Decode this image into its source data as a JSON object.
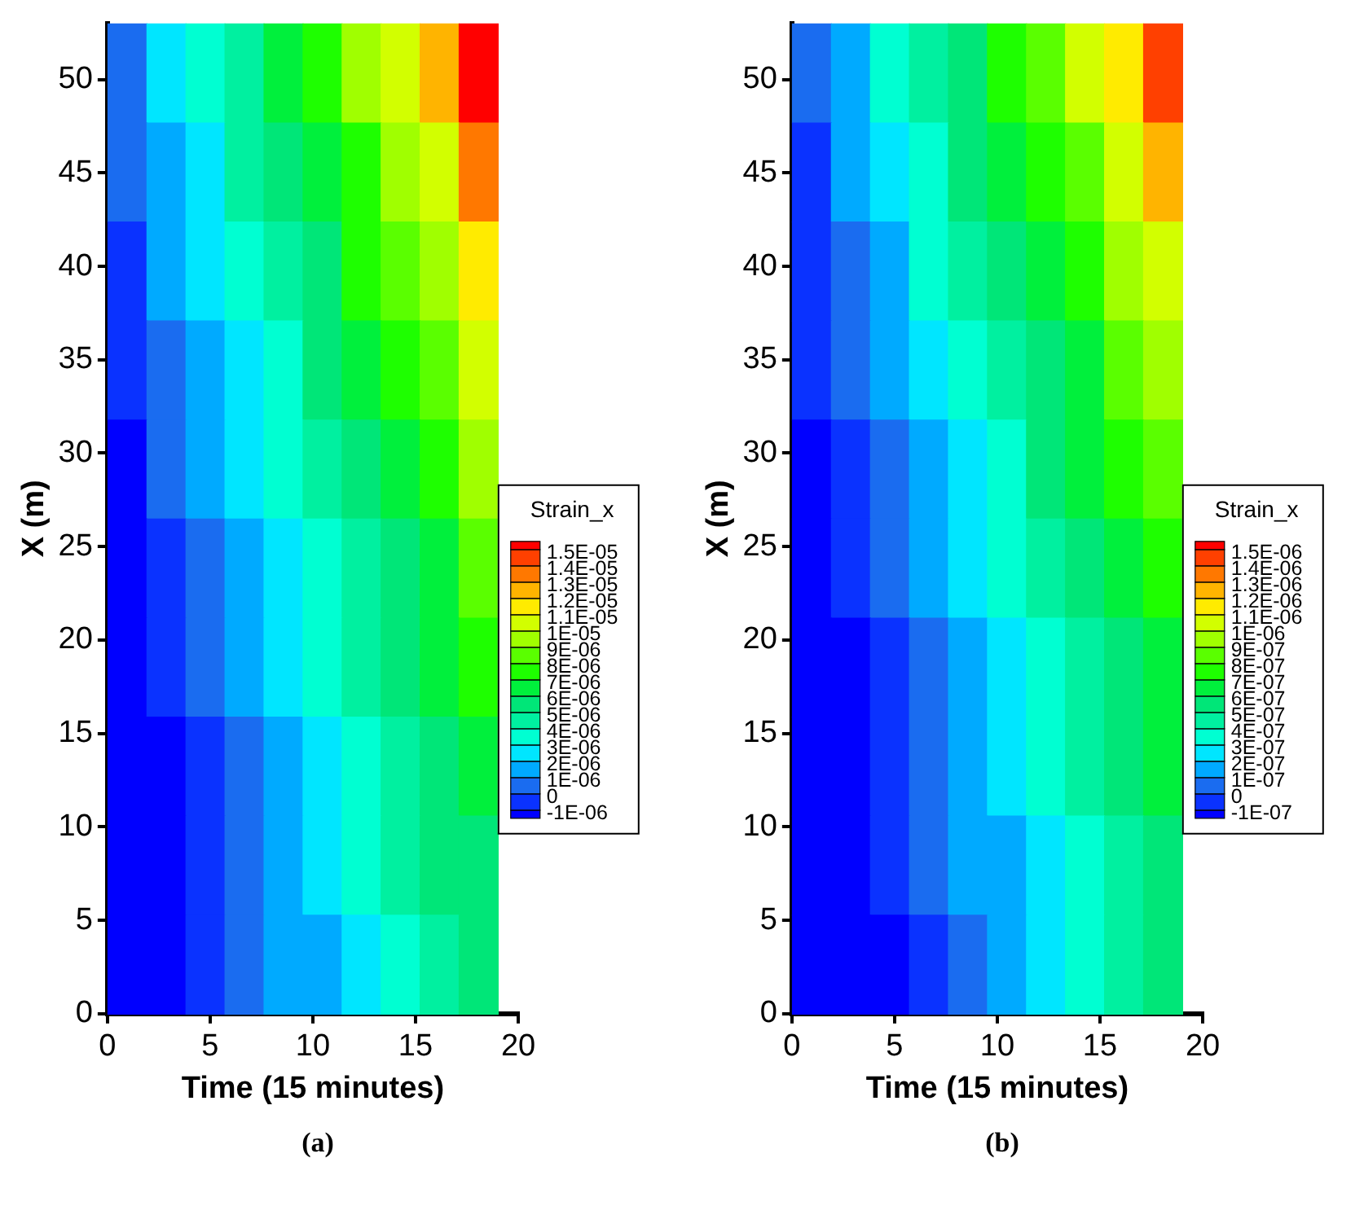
{
  "chart_data": [
    {
      "type": "heatmap",
      "xlabel": "Time (15 minutes)",
      "ylabel": "X (m)",
      "clabel": "Strain_x",
      "annotations": [
        "(a)"
      ],
      "x": [
        0.95,
        2.85,
        4.75,
        6.65,
        8.55,
        10.45,
        12.35,
        14.25,
        16.15,
        18.05
      ],
      "xlim": [
        0,
        20
      ],
      "xticks": [
        0,
        5,
        10,
        15,
        20
      ],
      "ylim": [
        0,
        53
      ],
      "yticks": [
        0,
        5,
        10,
        15,
        20,
        25,
        30,
        35,
        40,
        45,
        50
      ],
      "cells": [
        [
          5e-07,
          2.5e-06,
          3.5e-06,
          4.5e-06,
          6.5e-06,
          7.5e-06,
          9.5e-06,
          1.05e-05,
          1.25e-05,
          1.525e-05
        ],
        [
          5e-07,
          1.5e-06,
          2.5e-06,
          4.5e-06,
          5.5e-06,
          6.5e-06,
          7.5e-06,
          9.5e-06,
          1.05e-05,
          1.35e-05
        ],
        [
          -5e-07,
          1.5e-06,
          2.5e-06,
          3.5e-06,
          4.5e-06,
          5.5e-06,
          7.5e-06,
          8.5e-06,
          9.5e-06,
          1.15e-05
        ],
        [
          -5e-07,
          5e-07,
          1.5e-06,
          2.5e-06,
          3.5e-06,
          5.5e-06,
          6.5e-06,
          7.5e-06,
          8.5e-06,
          1.05e-05
        ],
        [
          -1.25e-06,
          5e-07,
          1.5e-06,
          2.5e-06,
          3.5e-06,
          4.5e-06,
          5.5e-06,
          6.5e-06,
          7.5e-06,
          9.5e-06
        ],
        [
          -1.25e-06,
          -5e-07,
          5e-07,
          1.5e-06,
          2.5e-06,
          3.5e-06,
          4.5e-06,
          5.5e-06,
          6.5e-06,
          8.5e-06
        ],
        [
          -1.25e-06,
          -5e-07,
          5e-07,
          1.5e-06,
          2.5e-06,
          3.5e-06,
          4.5e-06,
          5.5e-06,
          6.5e-06,
          7.5e-06
        ],
        [
          -1.25e-06,
          -1.25e-06,
          -5e-07,
          5e-07,
          1.5e-06,
          2.5e-06,
          3.5e-06,
          4.5e-06,
          5.5e-06,
          6.5e-06
        ],
        [
          -1.25e-06,
          -1.25e-06,
          -5e-07,
          5e-07,
          1.5e-06,
          2.5e-06,
          3.5e-06,
          4.5e-06,
          5.5e-06,
          5.5e-06
        ],
        [
          -1.25e-06,
          -1.25e-06,
          -5e-07,
          5e-07,
          1.5e-06,
          1.5e-06,
          2.5e-06,
          3.5e-06,
          4.5e-06,
          5.5e-06
        ]
      ],
      "clim": [
        -1.5e-06,
        1.55e-05
      ],
      "cticks": [
        {
          "value": -1e-06,
          "label": "-1E-06"
        },
        {
          "value": 0,
          "label": "0"
        },
        {
          "value": 1e-06,
          "label": "1E-06"
        },
        {
          "value": 2e-06,
          "label": "2E-06"
        },
        {
          "value": 3e-06,
          "label": "3E-06"
        },
        {
          "value": 4e-06,
          "label": "4E-06"
        },
        {
          "value": 5e-06,
          "label": "5E-06"
        },
        {
          "value": 6e-06,
          "label": "6E-06"
        },
        {
          "value": 7e-06,
          "label": "7E-06"
        },
        {
          "value": 8e-06,
          "label": "8E-06"
        },
        {
          "value": 9e-06,
          "label": "9E-06"
        },
        {
          "value": 1e-05,
          "label": "1E-05"
        },
        {
          "value": 1.1e-05,
          "label": "1.1E-05"
        },
        {
          "value": 1.2e-05,
          "label": "1.2E-05"
        },
        {
          "value": 1.3e-05,
          "label": "1.3E-05"
        },
        {
          "value": 1.4e-05,
          "label": "1.4E-05"
        },
        {
          "value": 1.5e-05,
          "label": "1.5E-05"
        }
      ],
      "colors": [
        "#0000ff",
        "#0a32ff",
        "#1a6cf0",
        "#00aaff",
        "#00e6ff",
        "#00ffd2",
        "#00f0a0",
        "#00e678",
        "#00f03c",
        "#1eff00",
        "#5aff00",
        "#a0ff00",
        "#d2ff00",
        "#ffeb00",
        "#ffb400",
        "#ff7800",
        "#ff4000",
        "#ff0000"
      ]
    },
    {
      "type": "heatmap",
      "xlabel": "Time (15 minutes)",
      "ylabel": "X (m)",
      "clabel": "Strain_x",
      "annotations": [
        "(b)"
      ],
      "x": [
        0.95,
        2.85,
        4.75,
        6.65,
        8.55,
        10.45,
        12.35,
        14.25,
        16.15,
        18.05
      ],
      "xlim": [
        0,
        20
      ],
      "xticks": [
        0,
        5,
        10,
        15,
        20
      ],
      "ylim": [
        0,
        53
      ],
      "yticks": [
        0,
        5,
        10,
        15,
        20,
        25,
        30,
        35,
        40,
        45,
        50
      ],
      "cells": [
        [
          5e-08,
          1.5e-07,
          3.5e-07,
          4.5e-07,
          5.5e-07,
          7.5e-07,
          8.5e-07,
          1.05e-06,
          1.15e-06,
          1.45e-06
        ],
        [
          -5e-08,
          1.5e-07,
          2.5e-07,
          3.5e-07,
          5.5e-07,
          6.5e-07,
          7.5e-07,
          8.5e-07,
          1.05e-06,
          1.25e-06
        ],
        [
          -5e-08,
          5e-08,
          1.5e-07,
          3.5e-07,
          4.5e-07,
          5.5e-07,
          6.5e-07,
          7.5e-07,
          9.5e-07,
          1.05e-06
        ],
        [
          -5e-08,
          5e-08,
          1.5e-07,
          2.5e-07,
          3.5e-07,
          4.5e-07,
          5.5e-07,
          6.5e-07,
          8.5e-07,
          9.5e-07
        ],
        [
          -1.25e-07,
          -5e-08,
          5e-08,
          1.5e-07,
          2.5e-07,
          3.5e-07,
          5.5e-07,
          6.5e-07,
          7.5e-07,
          8.5e-07
        ],
        [
          -1.25e-07,
          -5e-08,
          5e-08,
          1.5e-07,
          2.5e-07,
          3.5e-07,
          4.5e-07,
          5.5e-07,
          6.5e-07,
          7.5e-07
        ],
        [
          -1.25e-07,
          -1.25e-07,
          -5e-08,
          5e-08,
          1.5e-07,
          2.5e-07,
          3.5e-07,
          4.5e-07,
          5.5e-07,
          6.5e-07
        ],
        [
          -1.25e-07,
          -1.25e-07,
          -5e-08,
          5e-08,
          1.5e-07,
          2.5e-07,
          3.5e-07,
          4.5e-07,
          5.5e-07,
          6.5e-07
        ],
        [
          -1.25e-07,
          -1.25e-07,
          -5e-08,
          5e-08,
          1.5e-07,
          1.5e-07,
          2.5e-07,
          3.5e-07,
          4.5e-07,
          5.5e-07
        ],
        [
          -1.25e-07,
          -1.25e-07,
          -1.25e-07,
          -5e-08,
          5e-08,
          1.5e-07,
          2.5e-07,
          3.5e-07,
          4.5e-07,
          5.5e-07
        ]
      ],
      "clim": [
        -1.5e-07,
        1.55e-06
      ],
      "cticks": [
        {
          "value": -1e-07,
          "label": "-1E-07"
        },
        {
          "value": 0,
          "label": "0"
        },
        {
          "value": 1e-07,
          "label": "1E-07"
        },
        {
          "value": 2e-07,
          "label": "2E-07"
        },
        {
          "value": 3e-07,
          "label": "3E-07"
        },
        {
          "value": 4e-07,
          "label": "4E-07"
        },
        {
          "value": 5e-07,
          "label": "5E-07"
        },
        {
          "value": 6e-07,
          "label": "6E-07"
        },
        {
          "value": 7e-07,
          "label": "7E-07"
        },
        {
          "value": 8e-07,
          "label": "8E-07"
        },
        {
          "value": 9e-07,
          "label": "9E-07"
        },
        {
          "value": 1e-06,
          "label": "1E-06"
        },
        {
          "value": 1.1e-06,
          "label": "1.1E-06"
        },
        {
          "value": 1.2e-06,
          "label": "1.2E-06"
        },
        {
          "value": 1.3e-06,
          "label": "1.3E-06"
        },
        {
          "value": 1.4e-06,
          "label": "1.4E-06"
        },
        {
          "value": 1.5e-06,
          "label": "1.5E-06"
        }
      ],
      "colors": [
        "#0000ff",
        "#0a32ff",
        "#1a6cf0",
        "#00aaff",
        "#00e6ff",
        "#00ffd2",
        "#00f0a0",
        "#00e678",
        "#00f03c",
        "#1eff00",
        "#5aff00",
        "#a0ff00",
        "#d2ff00",
        "#ffeb00",
        "#ffb400",
        "#ff7800",
        "#ff4000",
        "#ff0000"
      ]
    }
  ]
}
